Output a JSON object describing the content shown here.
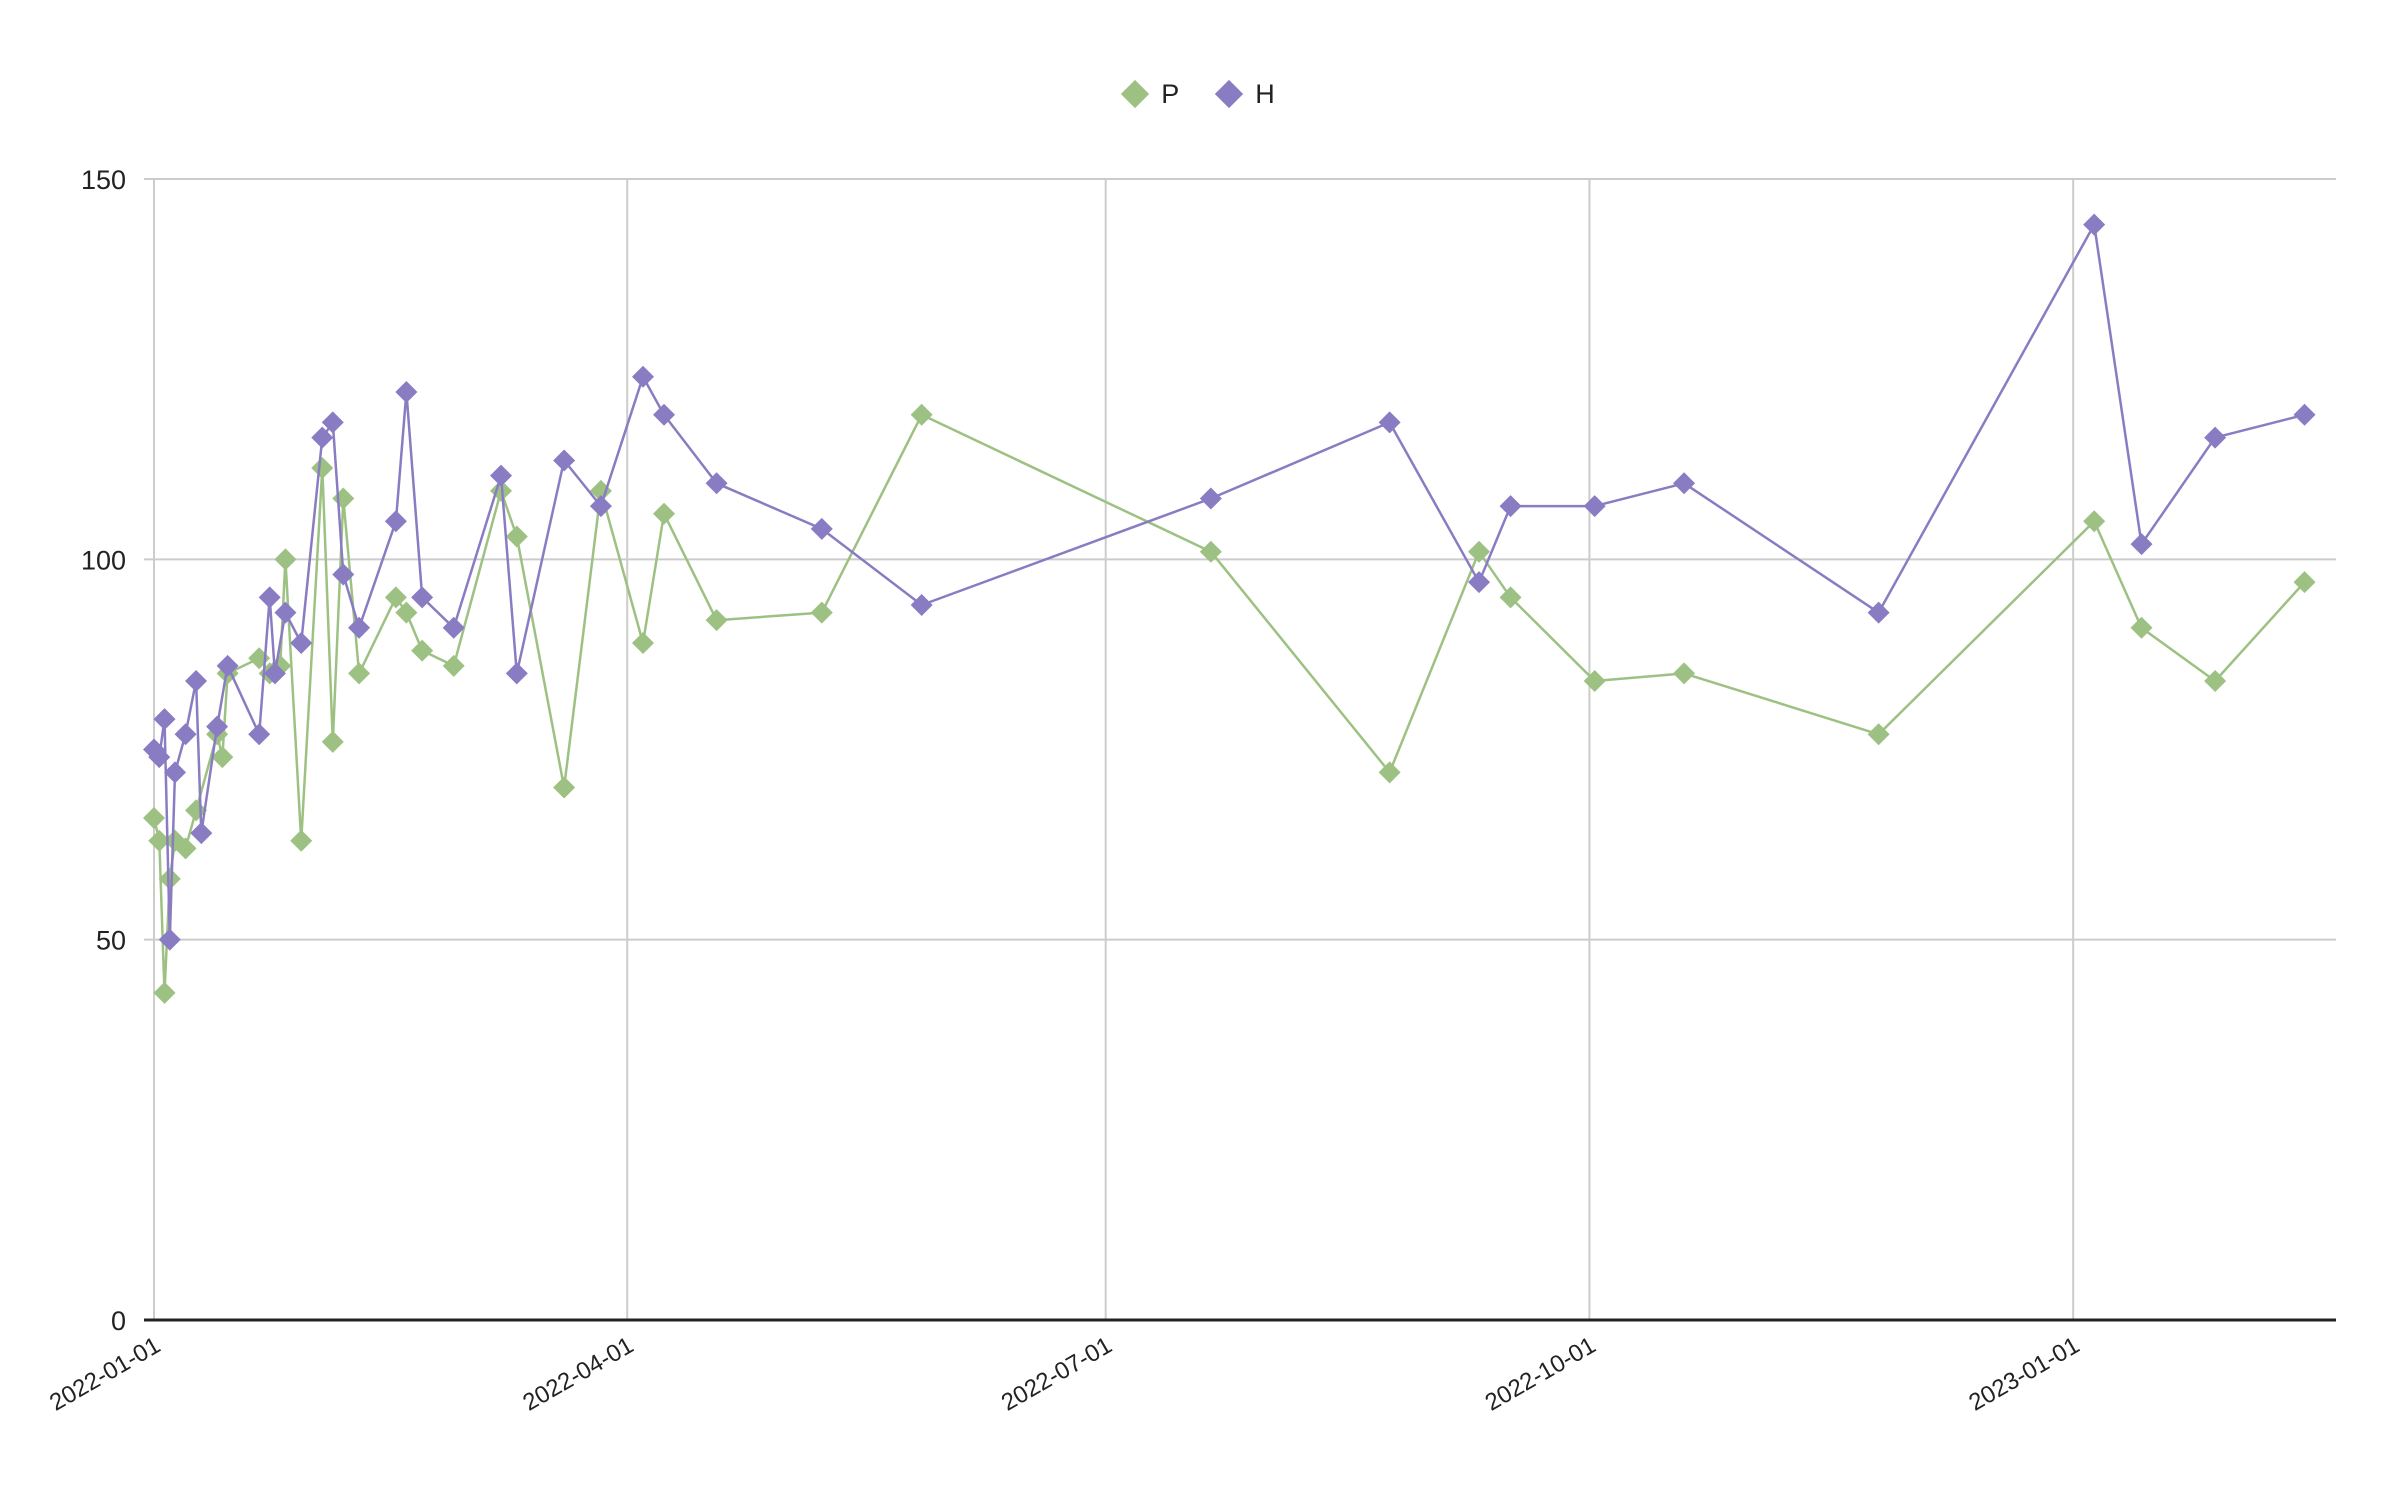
{
  "legend": {
    "items": [
      {
        "label": "P",
        "color": "#9DC183"
      },
      {
        "label": "H",
        "color": "#8A7CC2"
      }
    ]
  },
  "chart_data": {
    "type": "line",
    "title": "",
    "xlabel": "",
    "ylabel": "",
    "x_type": "date",
    "xlim": [
      "2022-01-01",
      "2023-02-23"
    ],
    "ylim": [
      0,
      150
    ],
    "y_ticks": [
      0,
      50,
      100,
      150
    ],
    "x_ticks": [
      "2022-01-01",
      "2022-04-01",
      "2022-07-01",
      "2022-10-01",
      "2023-01-01"
    ],
    "grid": true,
    "legend_position": "top",
    "marker": "diamond",
    "series": [
      {
        "name": "P",
        "color": "#9DC183",
        "points": [
          [
            "2022-01-01",
            66
          ],
          [
            "2022-01-02",
            63
          ],
          [
            "2022-01-03",
            43
          ],
          [
            "2022-01-04",
            58
          ],
          [
            "2022-01-05",
            63
          ],
          [
            "2022-01-07",
            62
          ],
          [
            "2022-01-09",
            67
          ],
          [
            "2022-01-13",
            77
          ],
          [
            "2022-01-14",
            74
          ],
          [
            "2022-01-15",
            85
          ],
          [
            "2022-01-21",
            87
          ],
          [
            "2022-01-23",
            85
          ],
          [
            "2022-01-25",
            86
          ],
          [
            "2022-01-26",
            100
          ],
          [
            "2022-01-29",
            63
          ],
          [
            "2022-02-02",
            112
          ],
          [
            "2022-02-04",
            76
          ],
          [
            "2022-02-06",
            108
          ],
          [
            "2022-02-09",
            85
          ],
          [
            "2022-02-16",
            95
          ],
          [
            "2022-02-18",
            93
          ],
          [
            "2022-02-21",
            88
          ],
          [
            "2022-02-27",
            86
          ],
          [
            "2022-03-08",
            109
          ],
          [
            "2022-03-11",
            103
          ],
          [
            "2022-03-20",
            70
          ],
          [
            "2022-03-27",
            109
          ],
          [
            "2022-04-04",
            89
          ],
          [
            "2022-04-08",
            106
          ],
          [
            "2022-04-18",
            92
          ],
          [
            "2022-05-08",
            93
          ],
          [
            "2022-05-27",
            119
          ],
          [
            "2022-07-21",
            101
          ],
          [
            "2022-08-24",
            72
          ],
          [
            "2022-09-10",
            101
          ],
          [
            "2022-09-16",
            95
          ],
          [
            "2022-10-02",
            84
          ],
          [
            "2022-10-19",
            85
          ],
          [
            "2022-11-25",
            77
          ],
          [
            "2023-01-05",
            105
          ],
          [
            "2023-01-14",
            91
          ],
          [
            "2023-01-28",
            84
          ],
          [
            "2023-02-14",
            97
          ]
        ]
      },
      {
        "name": "H",
        "color": "#8A7CC2",
        "points": [
          [
            "2022-01-01",
            75
          ],
          [
            "2022-01-02",
            74
          ],
          [
            "2022-01-03",
            79
          ],
          [
            "2022-01-04",
            50
          ],
          [
            "2022-01-05",
            72
          ],
          [
            "2022-01-07",
            77
          ],
          [
            "2022-01-09",
            84
          ],
          [
            "2022-01-10",
            64
          ],
          [
            "2022-01-13",
            78
          ],
          [
            "2022-01-15",
            86
          ],
          [
            "2022-01-21",
            77
          ],
          [
            "2022-01-23",
            95
          ],
          [
            "2022-01-24",
            85
          ],
          [
            "2022-01-26",
            93
          ],
          [
            "2022-01-29",
            89
          ],
          [
            "2022-02-02",
            116
          ],
          [
            "2022-02-04",
            118
          ],
          [
            "2022-02-06",
            98
          ],
          [
            "2022-02-09",
            91
          ],
          [
            "2022-02-16",
            105
          ],
          [
            "2022-02-18",
            122
          ],
          [
            "2022-02-21",
            95
          ],
          [
            "2022-02-27",
            91
          ],
          [
            "2022-03-08",
            111
          ],
          [
            "2022-03-11",
            85
          ],
          [
            "2022-03-20",
            113
          ],
          [
            "2022-03-27",
            107
          ],
          [
            "2022-04-04",
            124
          ],
          [
            "2022-04-08",
            119
          ],
          [
            "2022-04-18",
            110
          ],
          [
            "2022-05-08",
            104
          ],
          [
            "2022-05-27",
            94
          ],
          [
            "2022-07-21",
            108
          ],
          [
            "2022-08-24",
            118
          ],
          [
            "2022-09-10",
            97
          ],
          [
            "2022-09-16",
            107
          ],
          [
            "2022-10-02",
            107
          ],
          [
            "2022-10-19",
            110
          ],
          [
            "2022-11-25",
            93
          ],
          [
            "2023-01-05",
            144
          ],
          [
            "2023-01-14",
            102
          ],
          [
            "2023-01-28",
            116
          ],
          [
            "2023-02-14",
            119
          ]
        ]
      }
    ]
  },
  "colors": {
    "gridline": "#CCCCCC",
    "axis": "#222222",
    "text": "#222222"
  }
}
